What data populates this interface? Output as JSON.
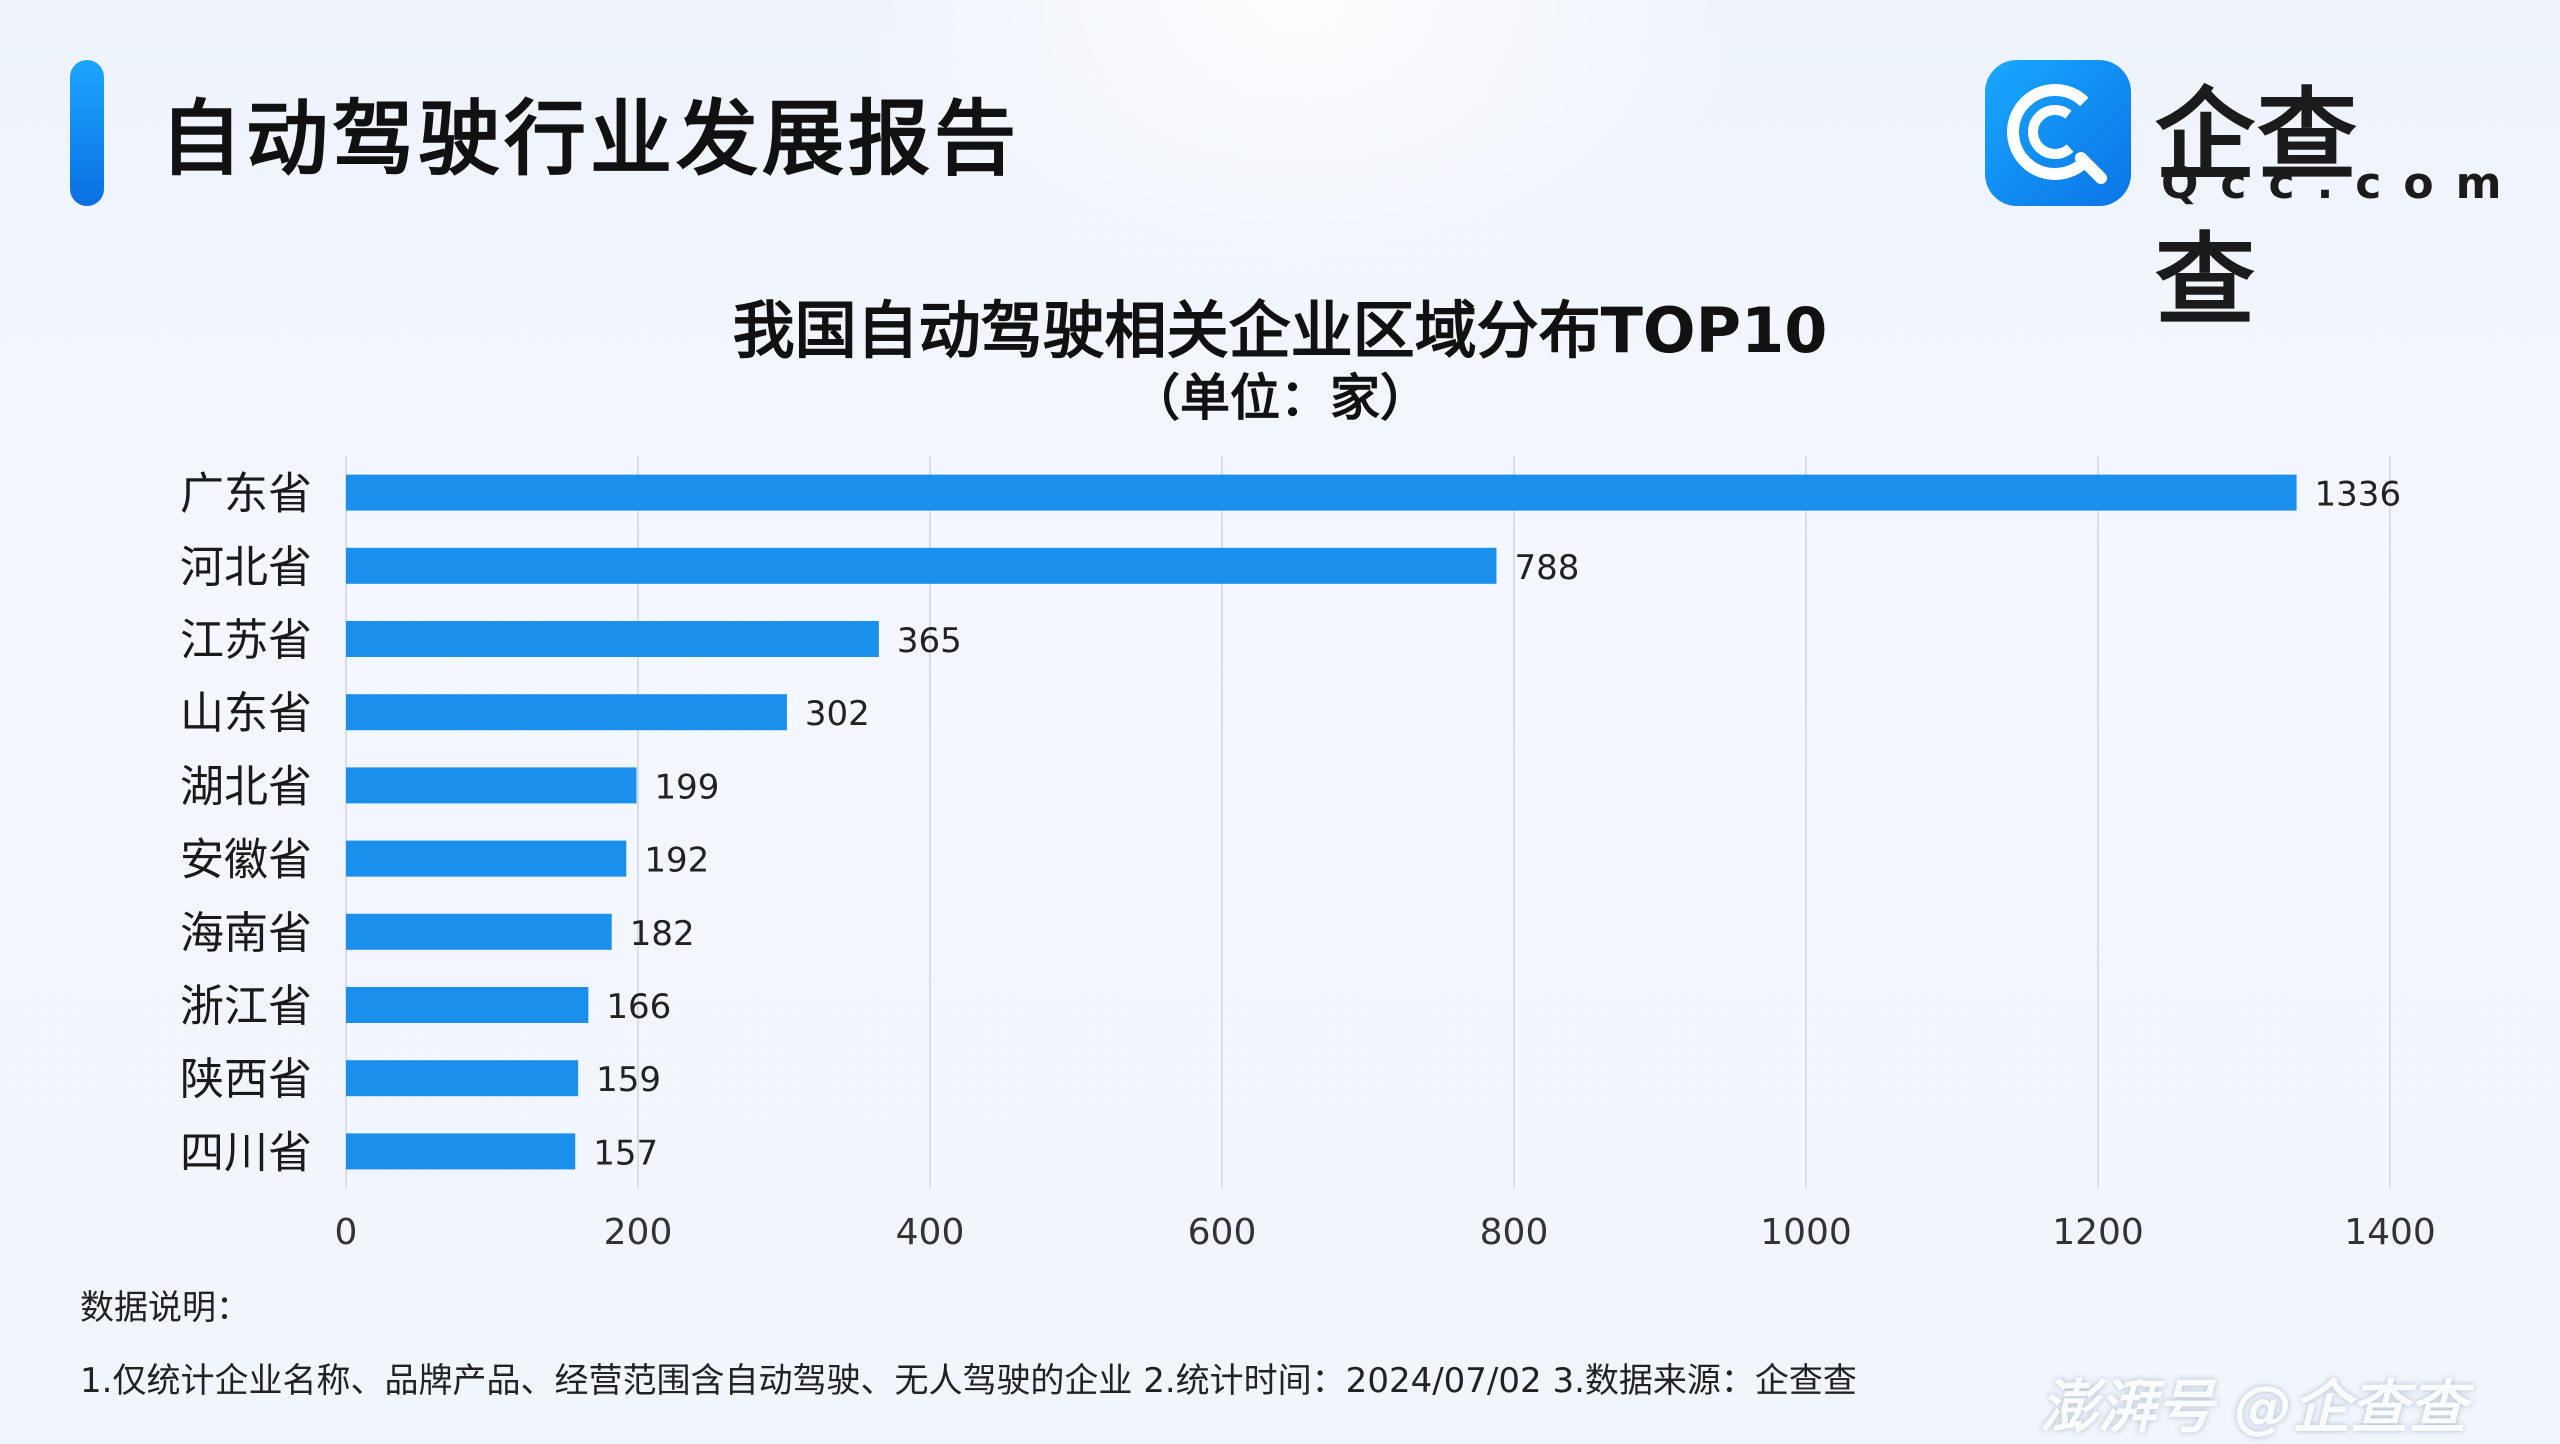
{
  "header": {
    "title": "自动驾驶行业发展报告"
  },
  "logo": {
    "name": "企查查",
    "domain": "Qcc.com",
    "icon": "qcc-logo-icon"
  },
  "chart_data": {
    "type": "bar",
    "orientation": "horizontal",
    "title": "我国自动驾驶相关企业区域分布TOP10",
    "subtitle": "（单位：家）",
    "categories": [
      "广东省",
      "河北省",
      "江苏省",
      "山东省",
      "湖北省",
      "安徽省",
      "海南省",
      "浙江省",
      "陕西省",
      "四川省"
    ],
    "values": [
      1336,
      788,
      365,
      302,
      199,
      192,
      182,
      166,
      159,
      157
    ],
    "xlim": [
      0,
      1400
    ],
    "xticks": [
      0,
      200,
      400,
      600,
      800,
      1000,
      1200,
      1400
    ],
    "grid": true,
    "bar_color": "#1a8fec"
  },
  "notes": {
    "heading": "数据说明：",
    "text": "1.仅统计企业名称、品牌产品、经营范围含自动驾驶、无人驾驶的企业   2.统计时间：2024/07/02    3.数据来源：企查查"
  },
  "watermark": "澎湃号 @企查查"
}
